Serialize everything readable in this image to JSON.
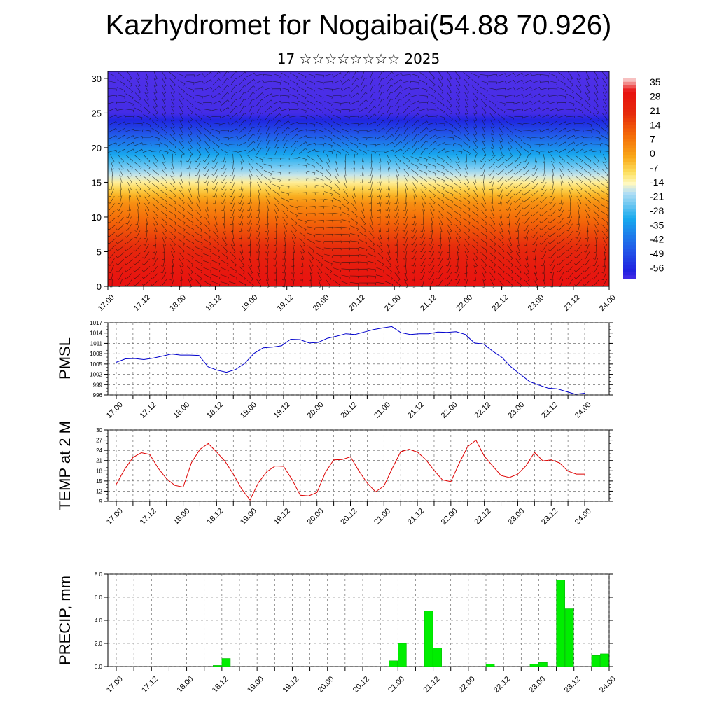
{
  "header": {
    "title": "Kazhydromet for Nogaibai(54.88 70.926)",
    "subtitle": "17 ☆☆☆☆☆☆☆☆ 2025"
  },
  "chart_data": [
    {
      "type": "heatmap",
      "name": "Temperature-height cross section with wind barbs",
      "x_tick_labels": [
        "17.00",
        "17.12",
        "18.00",
        "18.12",
        "19.00",
        "19.12",
        "20.00",
        "20.12",
        "21.00",
        "21.12",
        "22.00",
        "22.12",
        "23.00",
        "23.12",
        "24.00"
      ],
      "y_ticks": [
        0,
        5,
        10,
        15,
        20,
        25,
        30
      ],
      "ylim": [
        0,
        31
      ],
      "colorbar_labels": [
        "35",
        "28",
        "21",
        "14",
        "7",
        "0",
        "-7",
        "-14",
        "-21",
        "-28",
        "-35",
        "-42",
        "-49",
        "-56"
      ],
      "colors": {
        "warm": "#e01a10",
        "orange": "#f58a0a",
        "yellow": "#fff0a0",
        "cold_light": "#b0dcf0",
        "cold": "#1fa8ec",
        "deep": "#2020e0",
        "purple": "#8040f0"
      },
      "temperature_profile": [
        [
          0,
          30
        ],
        [
          4,
          24
        ],
        [
          8,
          14
        ],
        [
          12,
          4
        ],
        [
          15,
          -10
        ],
        [
          17,
          -20
        ],
        [
          20,
          -33
        ],
        [
          23,
          -47
        ],
        [
          25,
          -55
        ],
        [
          31,
          -56
        ]
      ]
    },
    {
      "type": "line",
      "ylabel": "PMSL",
      "x_tick_labels": [
        "17.00",
        "17.12",
        "18.00",
        "18.12",
        "19.00",
        "19.12",
        "20.00",
        "20.12",
        "21.00",
        "21.12",
        "22.00",
        "22.12",
        "23.00",
        "23.12",
        "24.00"
      ],
      "y_ticks": [
        996,
        999,
        1002,
        1005,
        1008,
        1011,
        1014,
        1017
      ],
      "ylim": [
        996,
        1017
      ],
      "color": "#0000cc",
      "values": [
        1005.5,
        1006.5,
        1006.6,
        1006.3,
        1006.7,
        1007.3,
        1007.9,
        1007.6,
        1007.6,
        1007.5,
        1004.2,
        1003.2,
        1002.6,
        1003.4,
        1005.2,
        1008.1,
        1009.7,
        1009.9,
        1010.3,
        1012.2,
        1012.1,
        1011.1,
        1011.3,
        1012.5,
        1013.1,
        1013.8,
        1013.6,
        1014.3,
        1015.0,
        1015.5,
        1015.9,
        1014.1,
        1013.6,
        1013.8,
        1013.8,
        1014.3,
        1014.2,
        1014.4,
        1013.6,
        1011.1,
        1010.8,
        1008.7,
        1006.9,
        1004.1,
        1002.0,
        999.9,
        998.9,
        998.0,
        997.8,
        997.0,
        996.2,
        996.5
      ]
    },
    {
      "type": "line",
      "ylabel": "TEMP at 2 M",
      "x_tick_labels": [
        "17.00",
        "17.12",
        "18.00",
        "18.12",
        "19.00",
        "19.12",
        "20.00",
        "20.12",
        "21.00",
        "21.12",
        "22.00",
        "22.12",
        "23.00",
        "23.12",
        "24.00"
      ],
      "y_ticks": [
        9,
        12,
        15,
        18,
        21,
        24,
        27,
        30
      ],
      "ylim": [
        9,
        30
      ],
      "color": "#dd0000",
      "values": [
        14.0,
        18.4,
        21.9,
        23.3,
        22.8,
        18.8,
        15.7,
        13.7,
        13.2,
        20.4,
        24.3,
        26.0,
        23.5,
        20.8,
        17.0,
        12.6,
        9.4,
        14.5,
        17.7,
        19.4,
        19.3,
        15.5,
        10.8,
        10.6,
        11.6,
        17.5,
        21.2,
        21.3,
        22.1,
        18.0,
        14.4,
        11.8,
        13.5,
        18.7,
        23.6,
        24.3,
        23.5,
        21.3,
        18.1,
        15.3,
        14.8,
        20.2,
        25.1,
        27.0,
        22.3,
        19.4,
        16.6,
        16.0,
        17.0,
        19.5,
        23.4,
        20.9,
        21.2,
        20.3,
        17.9,
        17.0,
        17.0
      ]
    },
    {
      "type": "bar",
      "ylabel": "PRECIP, mm",
      "x_tick_labels": [
        "17.00",
        "17.12",
        "18.00",
        "18.12",
        "19.00",
        "19.12",
        "20.00",
        "20.12",
        "21.00",
        "21.12",
        "22.00",
        "22.12",
        "23.00",
        "23.12",
        "24.00"
      ],
      "y_tick_labels": [
        "0.0",
        "2.0",
        "4.0",
        "6.0",
        "8.0"
      ],
      "ylim": [
        0,
        8
      ],
      "color": "#00ee00",
      "bar_count": 56,
      "values": [
        0,
        0,
        0,
        0,
        0,
        0,
        0,
        0,
        0,
        0,
        0,
        0.1,
        0.7,
        0,
        0,
        0,
        0,
        0,
        0,
        0,
        0,
        0,
        0,
        0,
        0,
        0,
        0,
        0,
        0,
        0,
        0,
        0.5,
        2.0,
        0,
        0,
        4.8,
        1.6,
        0,
        0,
        0,
        0,
        0,
        0.2,
        0,
        0,
        0,
        0,
        0.2,
        0.35,
        0,
        7.5,
        5.0,
        0,
        0,
        0.95,
        1.1
      ]
    }
  ]
}
